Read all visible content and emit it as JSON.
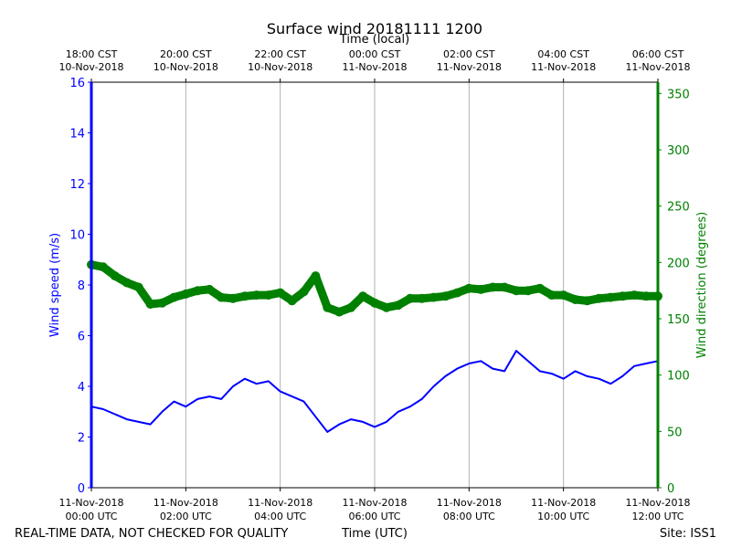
{
  "chart_data": {
    "type": "line",
    "title": "Surface wind 20181111 1200",
    "top_axis_label": "Time (local)",
    "xlabel": "Time (UTC)",
    "ylabel_left": "Wind speed (m/s)",
    "ylabel_right": "Wind direction (degrees)",
    "footer_left": "REAL-TIME DATA, NOT CHECKED FOR QUALITY",
    "footer_right": "Site: ISS1",
    "x_range_hours": [
      0,
      12
    ],
    "ylim_left": [
      0,
      16
    ],
    "ylim_right": [
      0,
      360
    ],
    "left_ticks": [
      "0",
      "2",
      "4",
      "6",
      "8",
      "10",
      "12",
      "14",
      "16"
    ],
    "right_ticks": [
      "0",
      "50",
      "100",
      "150",
      "200",
      "250",
      "300",
      "350"
    ],
    "bottom_ticks": [
      {
        "hour": 0,
        "line1": "11-Nov-2018",
        "line2": "00:00 UTC"
      },
      {
        "hour": 2,
        "line1": "11-Nov-2018",
        "line2": "02:00 UTC"
      },
      {
        "hour": 4,
        "line1": "11-Nov-2018",
        "line2": "04:00 UTC"
      },
      {
        "hour": 6,
        "line1": "11-Nov-2018",
        "line2": "06:00 UTC"
      },
      {
        "hour": 8,
        "line1": "11-Nov-2018",
        "line2": "08:00 UTC"
      },
      {
        "hour": 10,
        "line1": "11-Nov-2018",
        "line2": "10:00 UTC"
      },
      {
        "hour": 12,
        "line1": "11-Nov-2018",
        "line2": "12:00 UTC"
      }
    ],
    "top_ticks": [
      {
        "hour": 0,
        "line1": "18:00 CST",
        "line2": "10-Nov-2018"
      },
      {
        "hour": 2,
        "line1": "20:00 CST",
        "line2": "10-Nov-2018"
      },
      {
        "hour": 4,
        "line1": "22:00 CST",
        "line2": "10-Nov-2018"
      },
      {
        "hour": 6,
        "line1": "00:00 CST",
        "line2": "11-Nov-2018"
      },
      {
        "hour": 8,
        "line1": "02:00 CST",
        "line2": "11-Nov-2018"
      },
      {
        "hour": 10,
        "line1": "04:00 CST",
        "line2": "11-Nov-2018"
      },
      {
        "hour": 12,
        "line1": "06:00 CST",
        "line2": "11-Nov-2018"
      }
    ],
    "series": [
      {
        "name": "Wind speed",
        "axis": "left",
        "color": "#0000ff",
        "hours": [
          0,
          0.25,
          0.5,
          0.75,
          1,
          1.25,
          1.5,
          1.75,
          2,
          2.25,
          2.5,
          2.75,
          3,
          3.25,
          3.5,
          3.75,
          4,
          4.25,
          4.5,
          4.75,
          5,
          5.25,
          5.5,
          5.75,
          6,
          6.25,
          6.5,
          6.75,
          7,
          7.25,
          7.5,
          7.75,
          8,
          8.25,
          8.5,
          8.75,
          9,
          9.25,
          9.5,
          9.75,
          10,
          10.25,
          10.5,
          10.75,
          11,
          11.25,
          11.5,
          11.75,
          12
        ],
        "values": [
          3.2,
          3.1,
          2.9,
          2.7,
          2.6,
          2.5,
          3.0,
          3.4,
          3.2,
          3.5,
          3.6,
          3.5,
          4.0,
          4.3,
          4.1,
          4.2,
          3.8,
          3.6,
          3.4,
          2.8,
          2.2,
          2.5,
          2.7,
          2.6,
          2.4,
          2.6,
          3.0,
          3.2,
          3.5,
          4.0,
          4.4,
          4.7,
          4.9,
          5.0,
          4.7,
          4.6,
          5.4,
          5.0,
          4.6,
          4.5,
          4.3,
          4.6,
          4.4,
          4.3,
          4.1,
          4.4,
          4.8,
          4.9,
          5.0
        ]
      },
      {
        "name": "Wind direction",
        "axis": "right",
        "color": "#008000",
        "hours": [
          0,
          0.25,
          0.5,
          0.75,
          1,
          1.25,
          1.5,
          1.75,
          2,
          2.25,
          2.5,
          2.75,
          3,
          3.25,
          3.5,
          3.75,
          4,
          4.25,
          4.5,
          4.75,
          5,
          5.25,
          5.5,
          5.75,
          6,
          6.25,
          6.5,
          6.75,
          7,
          7.25,
          7.5,
          7.75,
          8,
          8.25,
          8.5,
          8.75,
          9,
          9.25,
          9.5,
          9.75,
          10,
          10.25,
          10.5,
          10.75,
          11,
          11.25,
          11.5,
          11.75,
          12
        ],
        "values": [
          198,
          196,
          188,
          182,
          178,
          163,
          164,
          169,
          172,
          175,
          176,
          169,
          168,
          170,
          171,
          171,
          173,
          166,
          174,
          188,
          160,
          156,
          160,
          170,
          164,
          160,
          162,
          168,
          168,
          169,
          170,
          173,
          177,
          176,
          178,
          178,
          175,
          175,
          177,
          171,
          171,
          167,
          166,
          168,
          169,
          170,
          171,
          170,
          170
        ]
      }
    ]
  }
}
